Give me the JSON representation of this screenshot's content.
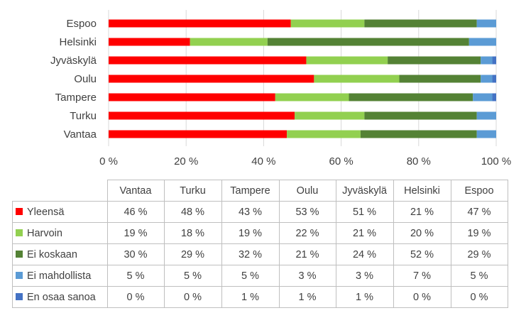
{
  "chart_data": {
    "type": "bar",
    "orientation": "horizontal",
    "stacked": true,
    "stack_mode": "percent",
    "categories": [
      "Vantaa",
      "Turku",
      "Tampere",
      "Oulu",
      "Jyväskylä",
      "Helsinki",
      "Espoo"
    ],
    "series": [
      {
        "name": "Yleensä",
        "color": "#ff0000",
        "values": [
          46,
          48,
          43,
          53,
          51,
          21,
          47
        ],
        "labels": [
          "46 %",
          "48 %",
          "43 %",
          "53 %",
          "51 %",
          "21 %",
          "47 %"
        ]
      },
      {
        "name": "Harvoin",
        "color": "#92d050",
        "values": [
          19,
          18,
          19,
          22,
          21,
          20,
          19
        ],
        "labels": [
          "19 %",
          "18 %",
          "19 %",
          "22 %",
          "21 %",
          "20 %",
          "19 %"
        ]
      },
      {
        "name": "Ei koskaan",
        "color": "#548235",
        "values": [
          30,
          29,
          32,
          21,
          24,
          52,
          29
        ],
        "labels": [
          "30 %",
          "29 %",
          "32 %",
          "21 %",
          "24 %",
          "52 %",
          "29 %"
        ]
      },
      {
        "name": "Ei mahdollista",
        "color": "#5b9bd5",
        "values": [
          5,
          5,
          5,
          3,
          3,
          7,
          5
        ],
        "labels": [
          "5 %",
          "5 %",
          "5 %",
          "3 %",
          "3 %",
          "7 %",
          "5 %"
        ]
      },
      {
        "name": "En osaa sanoa",
        "color": "#4472c4",
        "values": [
          0,
          0,
          1,
          1,
          1,
          0,
          0
        ],
        "labels": [
          "0 %",
          "0 %",
          "1 %",
          "1 %",
          "1 %",
          "0 %",
          "0 %"
        ]
      }
    ],
    "xlim": [
      0,
      100
    ],
    "x_ticks": [
      0,
      20,
      40,
      60,
      80,
      100
    ],
    "x_tick_labels": [
      "0 %",
      "20 %",
      "40 %",
      "60 %",
      "80 %",
      "100 %"
    ],
    "grid": true,
    "legend": "data-table-below",
    "title": "",
    "xlabel": "",
    "ylabel": ""
  }
}
